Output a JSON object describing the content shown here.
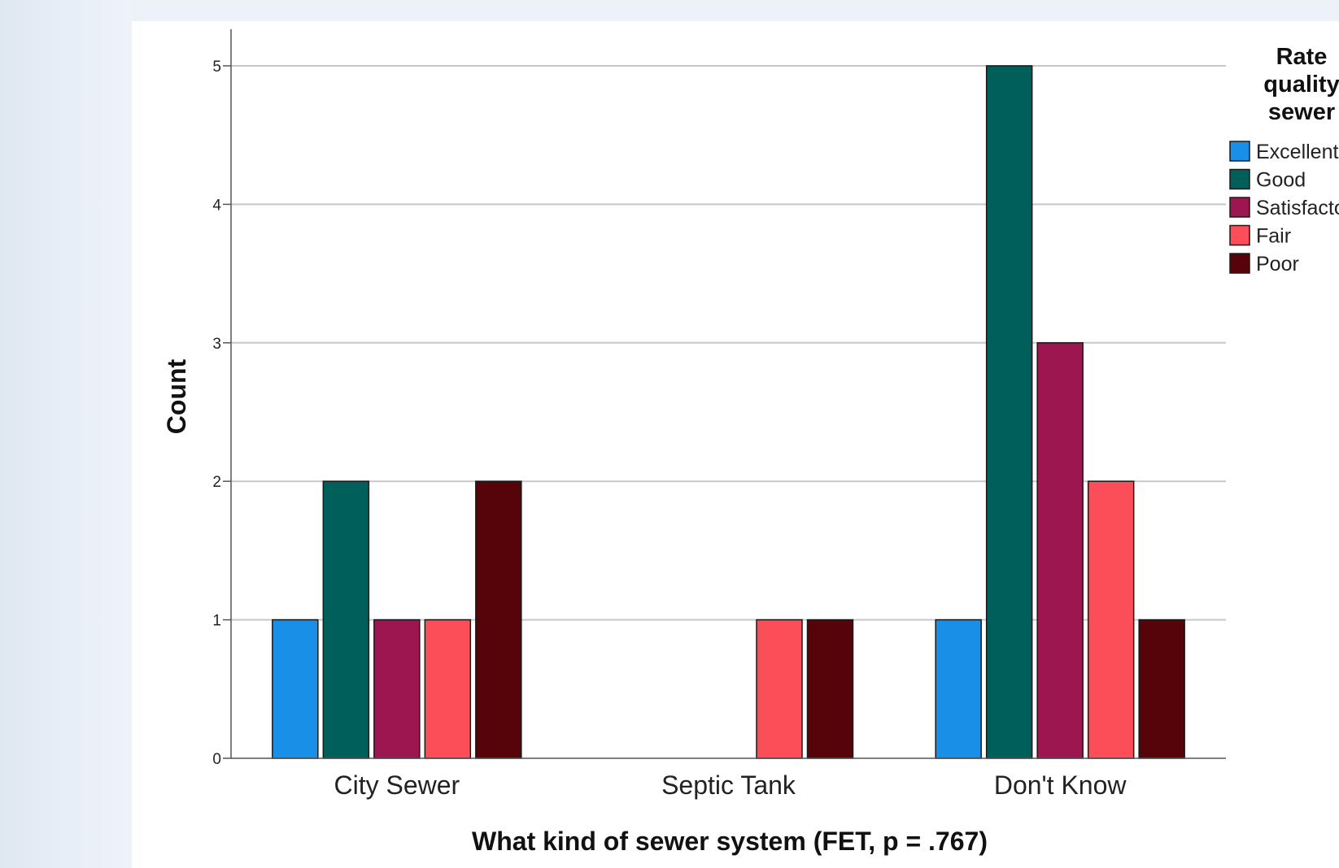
{
  "chart_data": {
    "type": "bar",
    "categories": [
      "City Sewer",
      "Septic Tank",
      "Don't Know"
    ],
    "series": [
      {
        "name": "Excellent",
        "color": "#1a8fe8",
        "values": [
          1,
          0,
          1
        ]
      },
      {
        "name": "Good",
        "color": "#005e5b",
        "values": [
          2,
          0,
          5
        ]
      },
      {
        "name": "Satisfactory",
        "color": "#9e1650",
        "values": [
          1,
          0,
          3
        ]
      },
      {
        "name": "Fair",
        "color": "#fb4e58",
        "values": [
          1,
          1,
          2
        ]
      },
      {
        "name": "Poor",
        "color": "#560409",
        "values": [
          2,
          1,
          1
        ]
      }
    ],
    "xlabel": "What kind of sewer system (FET, p = .767)",
    "ylabel": "Count",
    "ylim": [
      0,
      5
    ],
    "yticks": [
      "0",
      "1",
      "2",
      "3",
      "4",
      "5"
    ],
    "grid": true,
    "legend": {
      "title_lines": [
        "Rate",
        "quality",
        "sewer"
      ],
      "placement": "right",
      "labels": [
        "Excellent",
        "Good",
        "Satisfactory",
        "Fair",
        "Poor"
      ]
    }
  }
}
